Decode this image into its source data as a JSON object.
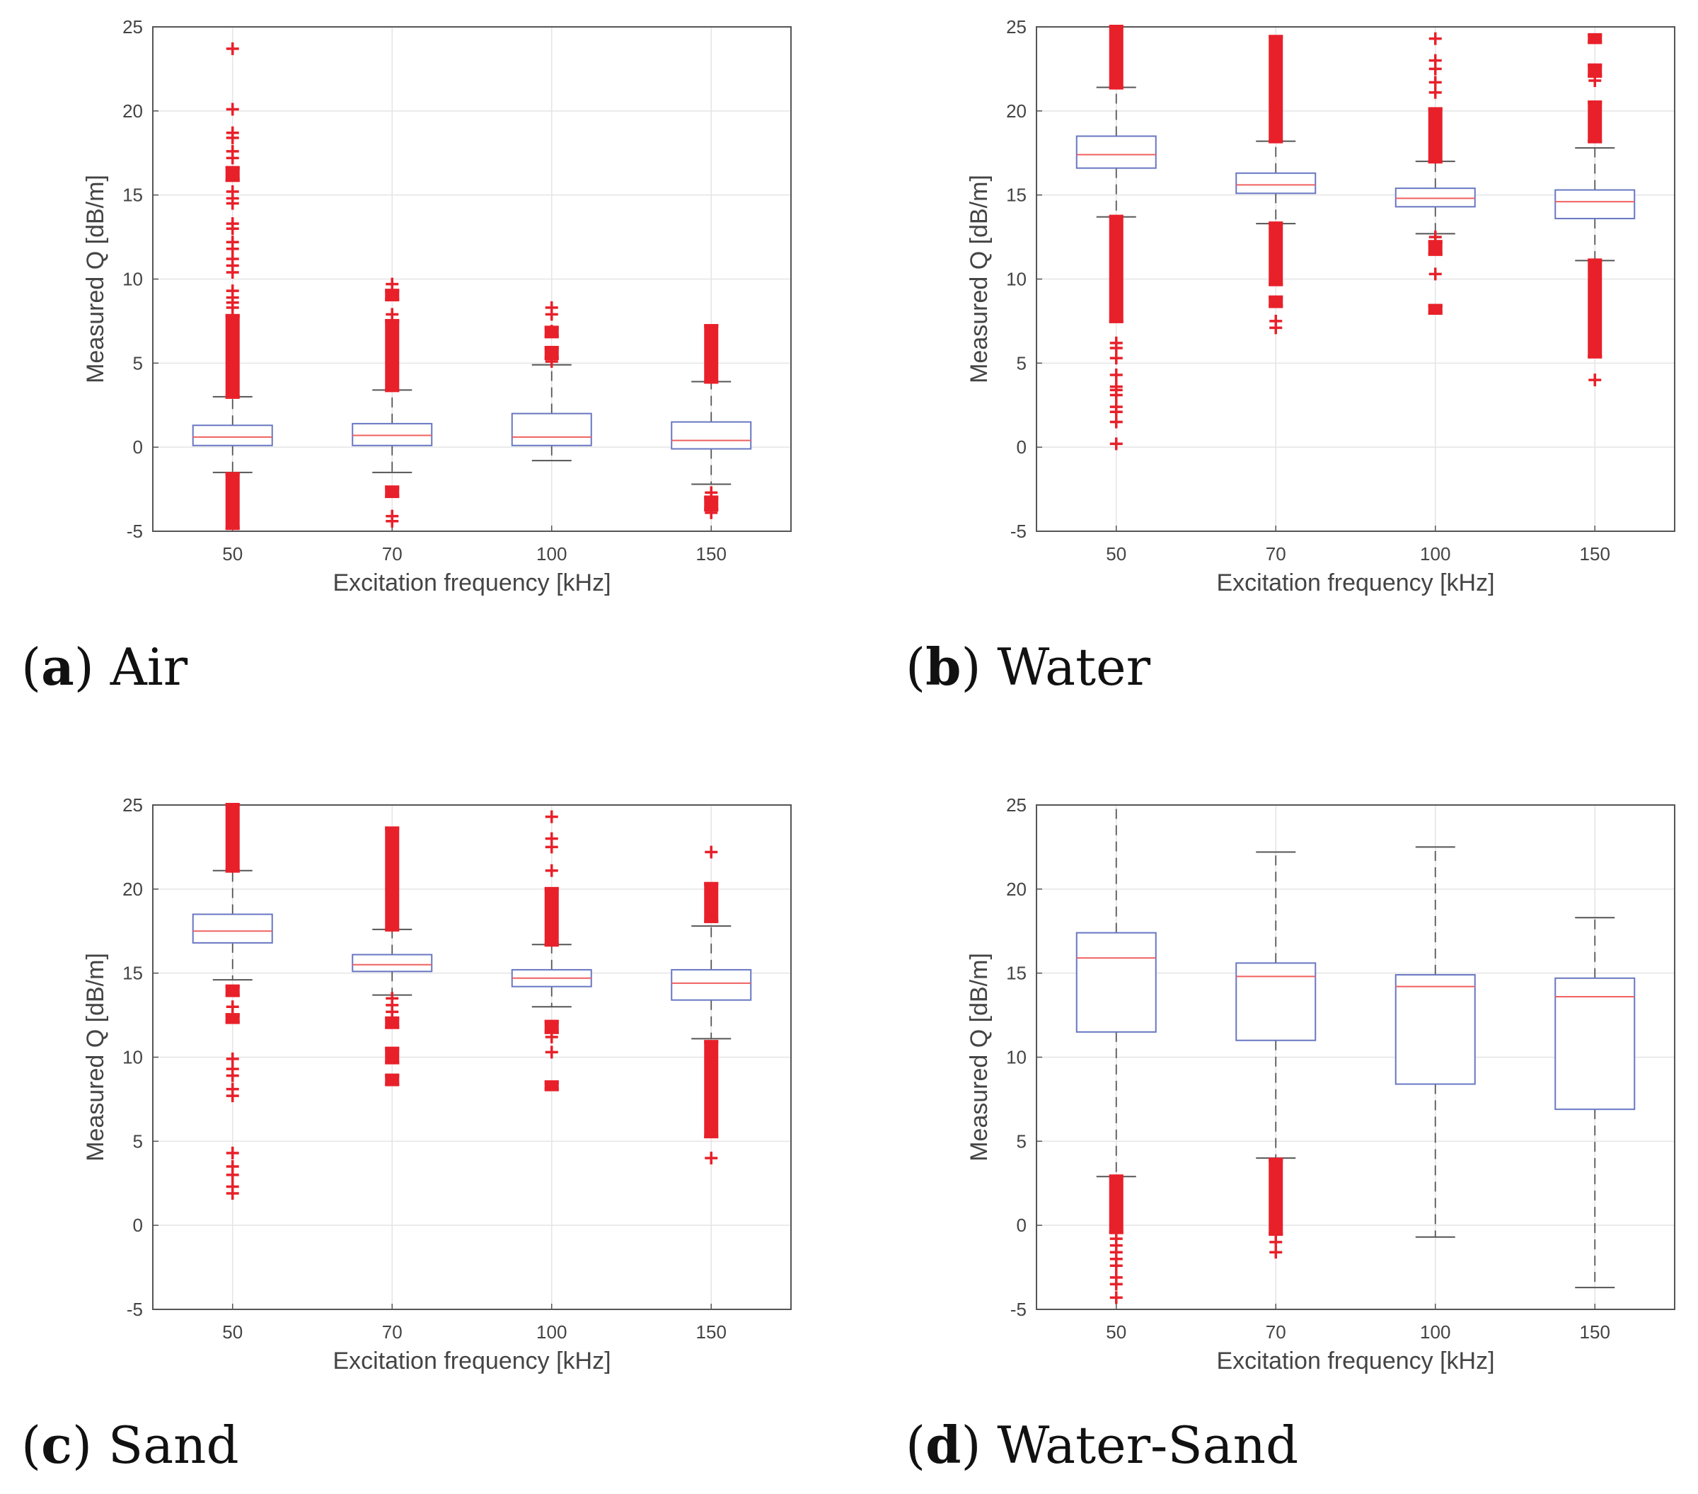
{
  "figure": {
    "panels": [
      {
        "letter": "a",
        "caption": "Air"
      },
      {
        "letter": "b",
        "caption": "Water"
      },
      {
        "letter": "c",
        "caption": "Sand"
      },
      {
        "letter": "d",
        "caption": "Water-Sand"
      }
    ]
  },
  "colors": {
    "box": "#6877c2",
    "median": "#f06060",
    "whisker": "#555555",
    "outlier": "#e8202a",
    "grid": "#e4e4e4",
    "axes": "#555555"
  },
  "chart_data": [
    {
      "type": "box",
      "panel": "a",
      "xlabel": "Excitation frequency [kHz]",
      "ylabel": "Measured Q [dB/m]",
      "ylim": [
        -5,
        25
      ],
      "yticks": [
        "-5",
        "0",
        "5",
        "10",
        "15",
        "20",
        "25"
      ],
      "categories": [
        "50",
        "70",
        "100",
        "150"
      ],
      "grid": true,
      "boxes": [
        {
          "q1": 0.1,
          "median": 0.6,
          "q3": 1.3,
          "whisker_low": -1.5,
          "whisker_high": 3.0,
          "outlier_bands": [
            [
              3.0,
              7.8
            ],
            [
              15.9,
              16.6
            ],
            [
              -4.8,
              -1.6
            ]
          ],
          "outliers": [
            23.7,
            20.1,
            18.7,
            18.4,
            17.6,
            17.2,
            15.2,
            14.8,
            14.5,
            13.3,
            13.0,
            12.2,
            11.8,
            11.2,
            10.8,
            10.4,
            9.3,
            8.9,
            8.6,
            8.3
          ]
        },
        {
          "q1": 0.1,
          "median": 0.7,
          "q3": 1.4,
          "whisker_low": -1.5,
          "whisker_high": 3.4,
          "outlier_bands": [
            [
              3.4,
              7.5
            ],
            [
              8.8,
              9.3
            ],
            [
              -2.9,
              -2.4
            ]
          ],
          "outliers": [
            9.7,
            7.9,
            -4.1,
            -4.4
          ]
        },
        {
          "q1": 0.1,
          "median": 0.6,
          "q3": 2.0,
          "whisker_low": -0.8,
          "whisker_high": 4.9,
          "outlier_bands": [
            [
              5.3,
              5.9
            ],
            [
              6.6,
              7.1
            ]
          ],
          "outliers": [
            8.3,
            7.9,
            6.9,
            5.1
          ]
        },
        {
          "q1": -0.1,
          "median": 0.4,
          "q3": 1.5,
          "whisker_low": -2.2,
          "whisker_high": 3.9,
          "outlier_bands": [
            [
              3.9,
              7.2
            ],
            [
              -3.7,
              -3.0
            ]
          ],
          "outliers": [
            -2.7,
            -3.9
          ]
        }
      ]
    },
    {
      "type": "box",
      "panel": "b",
      "xlabel": "Excitation frequency [kHz]",
      "ylabel": "Measured Q [dB/m]",
      "ylim": [
        -5,
        25
      ],
      "yticks": [
        "-5",
        "0",
        "5",
        "10",
        "15",
        "20",
        "25"
      ],
      "categories": [
        "50",
        "70",
        "100",
        "150"
      ],
      "grid": true,
      "boxes": [
        {
          "q1": 16.6,
          "median": 17.4,
          "q3": 18.5,
          "whisker_low": 13.7,
          "whisker_high": 21.4,
          "outlier_bands": [
            [
              21.4,
              25.0
            ],
            [
              7.5,
              13.7
            ]
          ],
          "outliers": [
            6.2,
            5.9,
            5.3,
            4.3,
            3.6,
            3.4,
            3.1,
            2.4,
            2.1,
            1.5,
            0.2
          ]
        },
        {
          "q1": 15.1,
          "median": 15.6,
          "q3": 16.3,
          "whisker_low": 13.3,
          "whisker_high": 18.2,
          "outlier_bands": [
            [
              18.2,
              24.4
            ],
            [
              9.7,
              13.3
            ],
            [
              8.4,
              8.9
            ]
          ],
          "outliers": [
            10.4,
            10.9,
            7.5,
            7.1
          ]
        },
        {
          "q1": 14.3,
          "median": 14.8,
          "q3": 15.4,
          "whisker_low": 12.7,
          "whisker_high": 17.0,
          "outlier_bands": [
            [
              17.0,
              20.1
            ],
            [
              11.5,
              12.2
            ],
            [
              8.0,
              8.4
            ]
          ],
          "outliers": [
            24.3,
            23.0,
            22.5,
            21.7,
            21.1,
            12.5,
            10.3
          ]
        },
        {
          "q1": 13.6,
          "median": 14.6,
          "q3": 15.3,
          "whisker_low": 11.1,
          "whisker_high": 17.8,
          "outlier_bands": [
            [
              18.2,
              20.5
            ],
            [
              5.4,
              11.1
            ],
            [
              22.1,
              22.7
            ],
            [
              24.1,
              24.5
            ]
          ],
          "outliers": [
            21.8,
            4.0
          ]
        }
      ]
    },
    {
      "type": "box",
      "panel": "c",
      "xlabel": "Excitation frequency [kHz]",
      "ylabel": "Measured Q [dB/m]",
      "ylim": [
        -5,
        25
      ],
      "yticks": [
        "-5",
        "0",
        "5",
        "10",
        "15",
        "20",
        "25"
      ],
      "categories": [
        "50",
        "70",
        "100",
        "150"
      ],
      "grid": true,
      "boxes": [
        {
          "q1": 16.8,
          "median": 17.5,
          "q3": 18.5,
          "whisker_low": 14.6,
          "whisker_high": 21.1,
          "outlier_bands": [
            [
              21.1,
              25.0
            ],
            [
              13.7,
              14.2
            ],
            [
              12.1,
              12.5
            ]
          ],
          "outliers": [
            13.0,
            9.9,
            9.3,
            8.9,
            8.1,
            7.7,
            4.3,
            3.5,
            3.0,
            2.3,
            1.9
          ]
        },
        {
          "q1": 15.1,
          "median": 15.5,
          "q3": 16.1,
          "whisker_low": 13.7,
          "whisker_high": 17.6,
          "outlier_bands": [
            [
              17.6,
              23.6
            ],
            [
              9.7,
              10.5
            ],
            [
              8.4,
              8.9
            ],
            [
              11.8,
              12.3
            ]
          ],
          "outliers": [
            13.1,
            12.7,
            13.5
          ]
        },
        {
          "q1": 14.2,
          "median": 14.7,
          "q3": 15.2,
          "whisker_low": 13.0,
          "whisker_high": 16.7,
          "outlier_bands": [
            [
              16.7,
              20.0
            ],
            [
              11.5,
              12.1
            ],
            [
              8.1,
              8.5
            ]
          ],
          "outliers": [
            24.3,
            23.0,
            22.5,
            21.1,
            11.2,
            10.3
          ]
        },
        {
          "q1": 13.4,
          "median": 14.4,
          "q3": 15.2,
          "whisker_low": 11.1,
          "whisker_high": 17.8,
          "outlier_bands": [
            [
              18.1,
              20.3
            ],
            [
              5.3,
              10.9
            ]
          ],
          "outliers": [
            22.2,
            4.0
          ]
        }
      ]
    },
    {
      "type": "box",
      "panel": "d",
      "xlabel": "Excitation frequency [kHz]",
      "ylabel": "Measured Q [dB/m]",
      "ylim": [
        -5,
        25
      ],
      "yticks": [
        "-5",
        "0",
        "5",
        "10",
        "15",
        "20",
        "25"
      ],
      "categories": [
        "50",
        "70",
        "100",
        "150"
      ],
      "grid": true,
      "boxes": [
        {
          "q1": 11.5,
          "median": 15.9,
          "q3": 17.4,
          "whisker_low": 2.9,
          "whisker_high": 25.0,
          "outlier_bands": [
            [
              -0.4,
              2.9
            ]
          ],
          "outliers": [
            -0.8,
            -1.2,
            -1.6,
            -2.0,
            -2.4,
            -3.1,
            -3.5,
            -4.3
          ]
        },
        {
          "q1": 11.0,
          "median": 14.8,
          "q3": 15.6,
          "whisker_low": 4.0,
          "whisker_high": 22.2,
          "outlier_bands": [
            [
              -0.5,
              3.9
            ]
          ],
          "outliers": [
            -1.0,
            -1.6
          ]
        },
        {
          "q1": 8.4,
          "median": 14.2,
          "q3": 14.9,
          "whisker_low": -0.7,
          "whisker_high": 22.5,
          "outlier_bands": [],
          "outliers": []
        },
        {
          "q1": 6.9,
          "median": 13.6,
          "q3": 14.7,
          "whisker_low": -3.7,
          "whisker_high": 18.3,
          "outlier_bands": [],
          "outliers": []
        }
      ]
    }
  ]
}
